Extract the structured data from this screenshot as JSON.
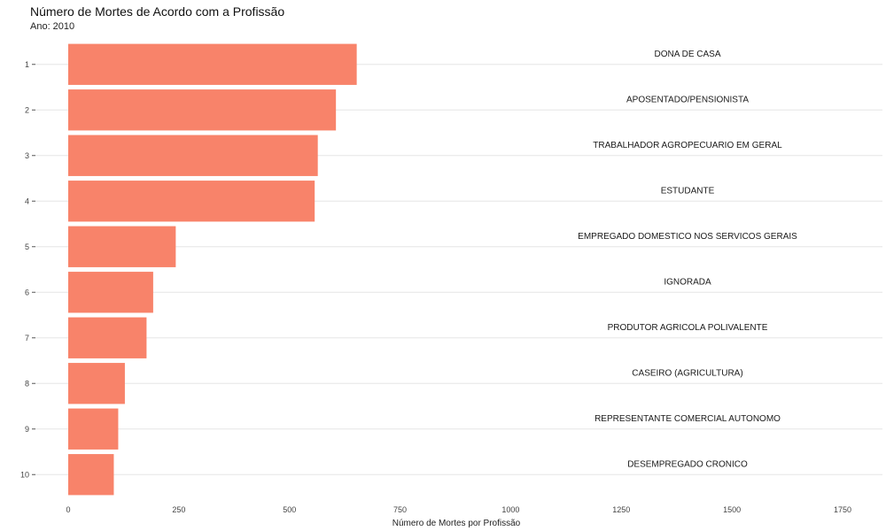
{
  "chart_data": {
    "type": "bar",
    "orientation": "horizontal",
    "title": "Número de Mortes de Acordo com a Profissão",
    "subtitle": "Ano: 2010",
    "xlabel": "Número de Mortes por Profissão",
    "ylabel": "",
    "xlim": [
      0,
      1800
    ],
    "x_ticks": [
      "0",
      "250",
      "500",
      "750",
      "1000",
      "1250",
      "1500",
      "1750"
    ],
    "categories": [
      "1",
      "2",
      "3",
      "4",
      "5",
      "6",
      "7",
      "8",
      "9",
      "10"
    ],
    "values": [
      652,
      605,
      564,
      557,
      243,
      192,
      177,
      128,
      113,
      103
    ],
    "labels": [
      "DONA DE CASA",
      "APOSENTADO/PENSIONISTA",
      "TRABALHADOR AGROPECUARIO EM GERAL",
      "ESTUDANTE",
      "EMPREGADO DOMESTICO NOS SERVICOS GERAIS",
      "IGNORADA",
      "PRODUTOR AGRICOLA POLIVALENTE",
      "CASEIRO (AGRICULTURA)",
      "REPRESENTANTE COMERCIAL AUTONOMO",
      "DESEMPREGADO CRONICO"
    ],
    "bar_color": "#F8836A",
    "grid": true,
    "legend": "none"
  }
}
